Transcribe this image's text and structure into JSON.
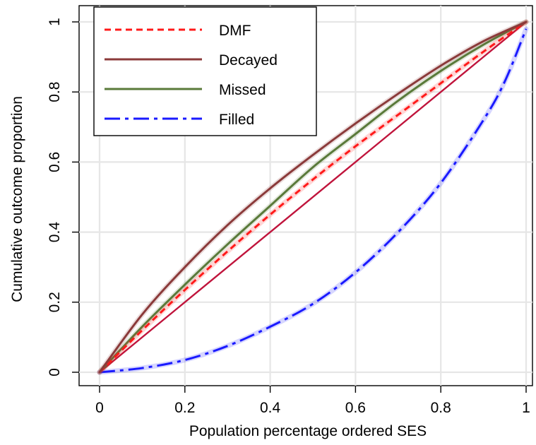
{
  "chart_data": {
    "type": "line",
    "title": "",
    "xlabel": "Population percentage ordered SES",
    "ylabel": "Cumulative outcome proportion",
    "xlim": [
      0,
      1
    ],
    "ylim": [
      0,
      1
    ],
    "xticks": [
      0,
      0.2,
      0.4,
      0.6,
      0.8,
      1
    ],
    "yticks": [
      0,
      0.2,
      0.4,
      0.6,
      0.8,
      1
    ],
    "xtick_labels": [
      "0",
      "0.2",
      "0.4",
      "0.6",
      "0.8",
      "1"
    ],
    "ytick_labels": [
      "0",
      "0.2",
      "0.4",
      "0.6",
      "0.8",
      "1"
    ],
    "grid": true,
    "legend_position": "top-left",
    "equality_line": {
      "x": [
        0,
        1
      ],
      "y": [
        0,
        1
      ],
      "color": "#c0143c"
    },
    "series": [
      {
        "name": "DMF",
        "color": "#ff1a1a",
        "style": "dashed",
        "x": [
          0,
          0.1,
          0.2,
          0.3,
          0.4,
          0.5,
          0.6,
          0.7,
          0.8,
          0.9,
          1.0
        ],
        "y": [
          0,
          0.12,
          0.235,
          0.345,
          0.45,
          0.55,
          0.645,
          0.735,
          0.825,
          0.915,
          1.0
        ]
      },
      {
        "name": "Decayed",
        "color": "#8b3a3a",
        "style": "solid",
        "x": [
          0,
          0.1,
          0.2,
          0.3,
          0.4,
          0.5,
          0.6,
          0.7,
          0.8,
          0.9,
          1.0
        ],
        "y": [
          0,
          0.165,
          0.3,
          0.42,
          0.525,
          0.62,
          0.71,
          0.795,
          0.875,
          0.945,
          1.0
        ]
      },
      {
        "name": "Missed",
        "color": "#5a7a3a",
        "style": "solid",
        "x": [
          0,
          0.1,
          0.2,
          0.3,
          0.4,
          0.5,
          0.6,
          0.7,
          0.8,
          0.9,
          1.0
        ],
        "y": [
          0,
          0.13,
          0.25,
          0.365,
          0.475,
          0.585,
          0.68,
          0.775,
          0.86,
          0.935,
          1.0
        ]
      },
      {
        "name": "Filled",
        "color": "#1a1aff",
        "style": "dashdot",
        "x": [
          0,
          0.1,
          0.2,
          0.3,
          0.4,
          0.5,
          0.6,
          0.7,
          0.8,
          0.9,
          0.95,
          1.0
        ],
        "y": [
          0,
          0.012,
          0.035,
          0.075,
          0.13,
          0.195,
          0.285,
          0.4,
          0.54,
          0.72,
          0.83,
          0.98
        ]
      }
    ]
  }
}
